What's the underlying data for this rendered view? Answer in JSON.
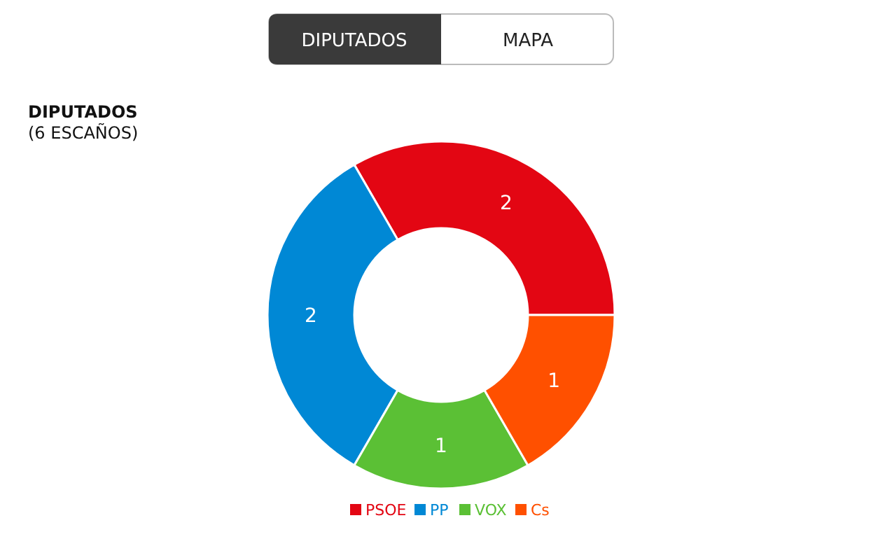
{
  "chart_data": {
    "type": "donut",
    "title": "DIPUTADOS",
    "subtitle": "(6 ESCAÑOS)",
    "annotations": [
      "DIPUTADOS",
      "MAPA"
    ],
    "categories": [
      "PSOE",
      "PP",
      "VOX",
      "Cs"
    ],
    "values": [
      2,
      2,
      1,
      1
    ],
    "colors": [
      "#e30613",
      "#0088d5",
      "#5bc035",
      "#ff5000"
    ],
    "data_labels": true,
    "legend": "bottom"
  }
}
